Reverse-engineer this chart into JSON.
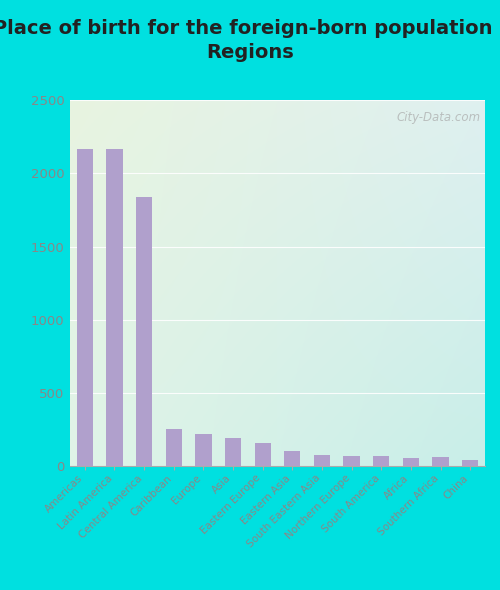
{
  "title": "Place of birth for the foreign-born population -\nRegions",
  "categories": [
    "Americas",
    "Latin America",
    "Central America",
    "Caribbean",
    "Europe",
    "Asia",
    "Eastern Europe",
    "Eastern Asia",
    "South Eastern Asia",
    "Northern Europe",
    "South America",
    "Africa",
    "Southern Africa",
    "China"
  ],
  "values": [
    2170,
    2170,
    1840,
    255,
    220,
    195,
    155,
    105,
    75,
    70,
    68,
    55,
    60,
    45
  ],
  "bar_color": "#b0a0cc",
  "bg_color_topleft": "#e8f4e0",
  "bg_color_topright": "#dff0f0",
  "bg_color_bottomleft": "#e0f4e8",
  "bg_color_bottomright": "#c8eee8",
  "outer_bg": "#00e0e0",
  "ylim": [
    0,
    2500
  ],
  "yticks": [
    0,
    500,
    1000,
    1500,
    2000,
    2500
  ],
  "title_fontsize": 14,
  "tick_label_color": "#888888",
  "watermark": "City-Data.com",
  "grid_color": "#cccccc"
}
